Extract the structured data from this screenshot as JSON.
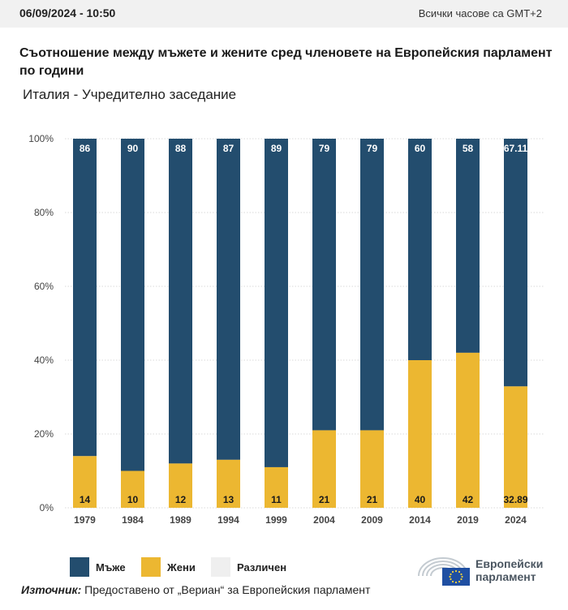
{
  "header": {
    "timestamp": "06/09/2024 - 10:50",
    "timezone_note": "Всички часове са GMT+2"
  },
  "title": "Съотношение между мъжете и жените сред членовете на Европейския парламент по години",
  "subtitle": "Италия - Учредително заседание",
  "source": {
    "label": "Източник:",
    "text": "Предоставено от „Вериан“ за Европейския парламент"
  },
  "logo": {
    "line1": "Европейски",
    "line2": "парламент"
  },
  "legend": [
    {
      "label": "Мъже",
      "color": "#234d6e"
    },
    {
      "label": "Жени",
      "color": "#ecb731"
    },
    {
      "label": "Различен",
      "color": "#efefef"
    }
  ],
  "chart_data": {
    "type": "bar",
    "stacked": true,
    "categories": [
      "1979",
      "1984",
      "1989",
      "1994",
      "1999",
      "2004",
      "2009",
      "2014",
      "2019",
      "2024"
    ],
    "series": [
      {
        "name": "Жени",
        "color": "#ecb731",
        "values": [
          14,
          10,
          12,
          13,
          11,
          21,
          21,
          40,
          42,
          32.89
        ],
        "labels": [
          "14",
          "10",
          "12",
          "13",
          "11",
          "21",
          "21",
          "40",
          "42",
          "32.89"
        ]
      },
      {
        "name": "Мъже",
        "color": "#234d6e",
        "values": [
          86,
          90,
          88,
          87,
          89,
          79,
          79,
          60,
          58,
          67.11
        ],
        "labels": [
          "86",
          "90",
          "88",
          "87",
          "89",
          "79",
          "79",
          "60",
          "58",
          "67.11"
        ]
      }
    ],
    "ylim": [
      0,
      100
    ],
    "yticks": [
      "0%",
      "20%",
      "40%",
      "60%",
      "80%",
      "100%"
    ],
    "grid": true
  }
}
